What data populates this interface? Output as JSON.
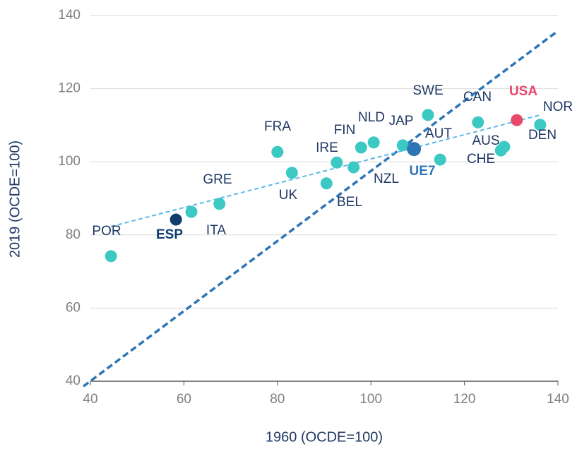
{
  "chart_data": {
    "type": "scatter",
    "xlabel": "1960 (OCDE=100)",
    "ylabel": "2019 (OCDE=100)",
    "labels": [
      "POR",
      "ESP",
      "ITA",
      "GRE",
      "FRA",
      "UK",
      "BEL",
      "IRE",
      "NZL",
      "FIN",
      "NLD",
      "JAP",
      "AUT",
      "UE7",
      "SWE",
      "CAN",
      "USA",
      "AUS",
      "CHE",
      "NOR",
      "DEN"
    ],
    "x": [
      44.4,
      58.3,
      61.6,
      67.6,
      80.0,
      83.1,
      90.5,
      92.7,
      96.3,
      97.9,
      100.6,
      106.8,
      114.8,
      109.2,
      112.2,
      122.9,
      131.2,
      128.5,
      127.8,
      136.2,
      136.2
    ],
    "y": [
      74.2,
      84.2,
      86.3,
      88.5,
      102.7,
      97.0,
      94.1,
      99.8,
      98.5,
      103.9,
      105.3,
      104.5,
      100.6,
      103.5,
      112.8,
      110.8,
      111.4,
      104.1,
      103.1,
      110.1,
      110.1
    ],
    "colors": [
      "#3cc9c3",
      "#0f3d6e",
      "#3cc9c3",
      "#3cc9c3",
      "#3cc9c3",
      "#3cc9c3",
      "#3cc9c3",
      "#3cc9c3",
      "#3cc9c3",
      "#3cc9c3",
      "#3cc9c3",
      "#3cc9c3",
      "#3cc9c3",
      "#2e75b6",
      "#3cc9c3",
      "#3cc9c3",
      "#e8486a",
      "#3cc9c3",
      "#3cc9c3",
      "#3cc9c3",
      "#3cc9c3"
    ],
    "reference_line": {
      "x": [
        38.5,
        140
      ],
      "y": [
        38.6,
        135.8
      ],
      "color": "#2e75b6"
    },
    "trend_line": {
      "x": [
        44.4,
        136.2
      ],
      "y": [
        82.3,
        112.8
      ],
      "color": "#5bb8e8"
    },
    "xlim": [
      40,
      140
    ],
    "ylim": [
      40,
      140
    ],
    "xticks": [
      40,
      60,
      80,
      100,
      120,
      140
    ],
    "yticks": [
      40,
      60,
      80,
      100,
      120,
      140
    ],
    "grid": true
  }
}
